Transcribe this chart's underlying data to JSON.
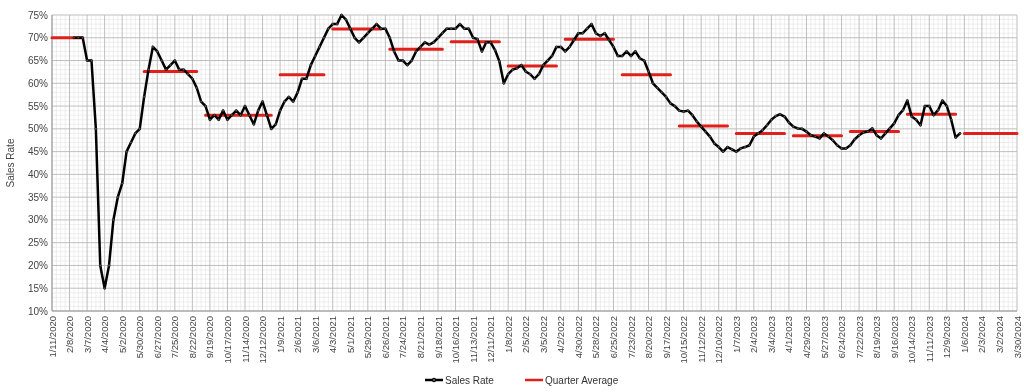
{
  "chart_data": {
    "type": "line",
    "ylabel": "Sales Rate",
    "categories": [
      "1/11/2020",
      null,
      null,
      null,
      "2/8/2020",
      null,
      null,
      null,
      "3/7/2020",
      null,
      null,
      null,
      "4/4/2020",
      null,
      null,
      null,
      "5/2/2020",
      null,
      null,
      null,
      "5/30/2020",
      null,
      null,
      null,
      "6/27/2020",
      null,
      null,
      null,
      "7/25/2020",
      null,
      null,
      null,
      "8/22/2020",
      null,
      null,
      null,
      "9/19/2020",
      null,
      null,
      null,
      "10/17/2020",
      null,
      null,
      null,
      "11/14/2020",
      null,
      null,
      null,
      "12/12/2020",
      null,
      null,
      null,
      "1/9/2021",
      null,
      null,
      null,
      "2/6/2021",
      null,
      null,
      null,
      "3/6/2021",
      null,
      null,
      null,
      "4/3/2021",
      null,
      null,
      null,
      "5/1/2021",
      null,
      null,
      null,
      "5/29/2021",
      null,
      null,
      null,
      "6/26/2021",
      null,
      null,
      null,
      "7/24/2021",
      null,
      null,
      null,
      "8/21/2021",
      null,
      null,
      null,
      "9/18/2021",
      null,
      null,
      null,
      "10/16/2021",
      null,
      null,
      null,
      "11/13/2021",
      null,
      null,
      null,
      "12/11/2021",
      null,
      null,
      null,
      "1/8/2022",
      null,
      null,
      null,
      "2/5/2022",
      null,
      null,
      null,
      "3/5/2022",
      null,
      null,
      null,
      "4/2/2022",
      null,
      null,
      null,
      "4/30/2022",
      null,
      null,
      null,
      "5/28/2022",
      null,
      null,
      null,
      "6/25/2022",
      null,
      null,
      null,
      "7/23/2022",
      null,
      null,
      null,
      "8/20/2022",
      null,
      null,
      null,
      "9/17/2022",
      null,
      null,
      null,
      "10/15/2022",
      null,
      null,
      null,
      "11/12/2022",
      null,
      null,
      null,
      "12/10/2022",
      null,
      null,
      null,
      "1/7/2023",
      null,
      null,
      null,
      "2/4/2023",
      null,
      null,
      null,
      "3/4/2023",
      null,
      null,
      null,
      "4/1/2023",
      null,
      null,
      null,
      "4/29/2023",
      null,
      null,
      null,
      "5/27/2023",
      null,
      null,
      null,
      "6/24/2023",
      null,
      null,
      null,
      "7/22/2023",
      null,
      null,
      null,
      "8/19/2023",
      null,
      null,
      null,
      "9/16/2023",
      null,
      null,
      null,
      "10/14/2023",
      null,
      null,
      null,
      "11/11/2023",
      null,
      null,
      null,
      "12/9/2023",
      null,
      null,
      null,
      "1/6/2024",
      null,
      null,
      null,
      "2/3/2024",
      null,
      null,
      null,
      "3/2/2024",
      null,
      null,
      null,
      "3/30/2024"
    ],
    "series": [
      {
        "name": "Sales Rate",
        "color": "#000000",
        "marker": "circle",
        "values": [
          null,
          null,
          null,
          null,
          null,
          70,
          70,
          70,
          65,
          65,
          50,
          20,
          15,
          20,
          30,
          35,
          38,
          45,
          47,
          49,
          50,
          57,
          63,
          68,
          67,
          65,
          63,
          64,
          65,
          63,
          63,
          62,
          61,
          59,
          56,
          55,
          52,
          53,
          52,
          54,
          52,
          53,
          54,
          53,
          55,
          53,
          51,
          54,
          56,
          53,
          50,
          51,
          54,
          56,
          57,
          56,
          58,
          61,
          61,
          64,
          66,
          68,
          70,
          72,
          73,
          73,
          75,
          74,
          72,
          70,
          69,
          70,
          71,
          72,
          73,
          72,
          72,
          70,
          67,
          65,
          65,
          64,
          65,
          67,
          68,
          69,
          68.5,
          69,
          70,
          71,
          72,
          72,
          72,
          73,
          72,
          72,
          70,
          69.7,
          67,
          69,
          69,
          67.3,
          64.8,
          60,
          62,
          63,
          63.3,
          64,
          62.6,
          62,
          61,
          62,
          64,
          65,
          66,
          68,
          68,
          67,
          68,
          69.5,
          71,
          71,
          72,
          73,
          71,
          70.4,
          71,
          69.5,
          68,
          66,
          66,
          67,
          66,
          67,
          65.5,
          65,
          62.6,
          60,
          59,
          58,
          57,
          55.6,
          55,
          54,
          53.8,
          54,
          53,
          51.6,
          50.5,
          49.4,
          48.3,
          46.8,
          46,
          45,
          46,
          45.5,
          45,
          45.7,
          46,
          46.4,
          48.3,
          49,
          49.7,
          50.8,
          52,
          52.8,
          53.2,
          52.7,
          51.4,
          50.5,
          50.1,
          50,
          49.4,
          48.6,
          48.3,
          47.9,
          49,
          48.3,
          47.5,
          46.4,
          45.7,
          45.7,
          46.4,
          47.7,
          48.6,
          49.2,
          49.4,
          50.1,
          48.6,
          47.9,
          49,
          50.1,
          51.2,
          53,
          54.1,
          56.2,
          52.7,
          52,
          50.8,
          55,
          55,
          53,
          54.1,
          56.2,
          55,
          52,
          48.1,
          49,
          null,
          null,
          null,
          null,
          null,
          null,
          null,
          null,
          null,
          null,
          null,
          null,
          null
        ]
      },
      {
        "name": "Quarter Average",
        "color": "#e0201b",
        "marker": "none",
        "values": [
          70,
          70,
          70,
          70,
          70,
          70,
          70,
          70,
          null,
          null,
          null,
          null,
          null,
          null,
          null,
          null,
          null,
          null,
          null,
          null,
          null,
          62.6,
          62.6,
          62.6,
          62.6,
          62.6,
          62.6,
          62.6,
          62.6,
          62.6,
          62.6,
          62.6,
          62.6,
          62.6,
          null,
          53,
          53,
          53,
          53,
          53,
          53,
          53,
          53,
          53,
          53,
          53,
          53,
          53,
          53,
          53,
          53,
          null,
          61.9,
          61.9,
          61.9,
          61.9,
          61.9,
          61.9,
          61.9,
          61.9,
          61.9,
          61.9,
          61.9,
          null,
          71.9,
          71.9,
          71.9,
          71.9,
          71.9,
          71.9,
          71.9,
          71.9,
          71.9,
          71.9,
          71.9,
          71.9,
          null,
          67.5,
          67.5,
          67.5,
          67.5,
          67.5,
          67.5,
          67.5,
          67.5,
          67.5,
          67.5,
          67.5,
          67.5,
          67.5,
          null,
          69.1,
          69.1,
          69.1,
          69.1,
          69.1,
          69.1,
          69.1,
          69.1,
          69.1,
          69.1,
          69.1,
          69.1,
          null,
          63.8,
          63.8,
          63.8,
          63.8,
          63.8,
          63.8,
          63.8,
          63.8,
          63.8,
          63.8,
          63.8,
          63.8,
          null,
          69.7,
          69.7,
          69.7,
          69.7,
          69.7,
          69.7,
          69.7,
          69.7,
          69.7,
          69.7,
          69.7,
          69.7,
          null,
          61.9,
          61.9,
          61.9,
          61.9,
          61.9,
          61.9,
          61.9,
          61.9,
          61.9,
          61.9,
          61.9,
          61.9,
          null,
          50.6,
          50.6,
          50.6,
          50.6,
          50.6,
          50.6,
          50.6,
          50.6,
          50.6,
          50.6,
          50.6,
          50.6,
          null,
          49,
          49,
          49,
          49,
          49,
          49,
          49,
          49,
          49,
          49,
          49,
          49,
          null,
          48.5,
          48.5,
          48.5,
          48.5,
          48.5,
          48.5,
          48.5,
          48.5,
          48.5,
          48.5,
          48.5,
          48.5,
          null,
          49.4,
          49.4,
          49.4,
          49.4,
          49.4,
          49.4,
          49.4,
          49.4,
          49.4,
          49.4,
          49.4,
          49.4,
          null,
          53.2,
          53.2,
          53.2,
          53.2,
          53.2,
          53.2,
          53.2,
          53.2,
          53.2,
          53.2,
          53.2,
          53.2,
          null,
          49,
          49,
          49,
          49,
          49,
          49,
          49,
          49,
          49,
          49,
          49,
          49,
          49
        ]
      }
    ],
    "ylim": [
      10,
      75
    ],
    "yticks": [
      {
        "value": 10,
        "label": "10%"
      },
      {
        "value": 15,
        "label": "15%"
      },
      {
        "value": 20,
        "label": "20%"
      },
      {
        "value": 25,
        "label": "25%"
      },
      {
        "value": 30,
        "label": "30%"
      },
      {
        "value": 35,
        "label": "35%"
      },
      {
        "value": 40,
        "label": "40%"
      },
      {
        "value": 45,
        "label": "45%"
      },
      {
        "value": 50,
        "label": "50%"
      },
      {
        "value": 55,
        "label": "55%"
      },
      {
        "value": 60,
        "label": "60%"
      },
      {
        "value": 65,
        "label": "65%"
      },
      {
        "value": 70,
        "label": "70%"
      },
      {
        "value": 75,
        "label": "75%"
      }
    ],
    "grid": true,
    "legend": "bottom",
    "line_style": "solid"
  }
}
